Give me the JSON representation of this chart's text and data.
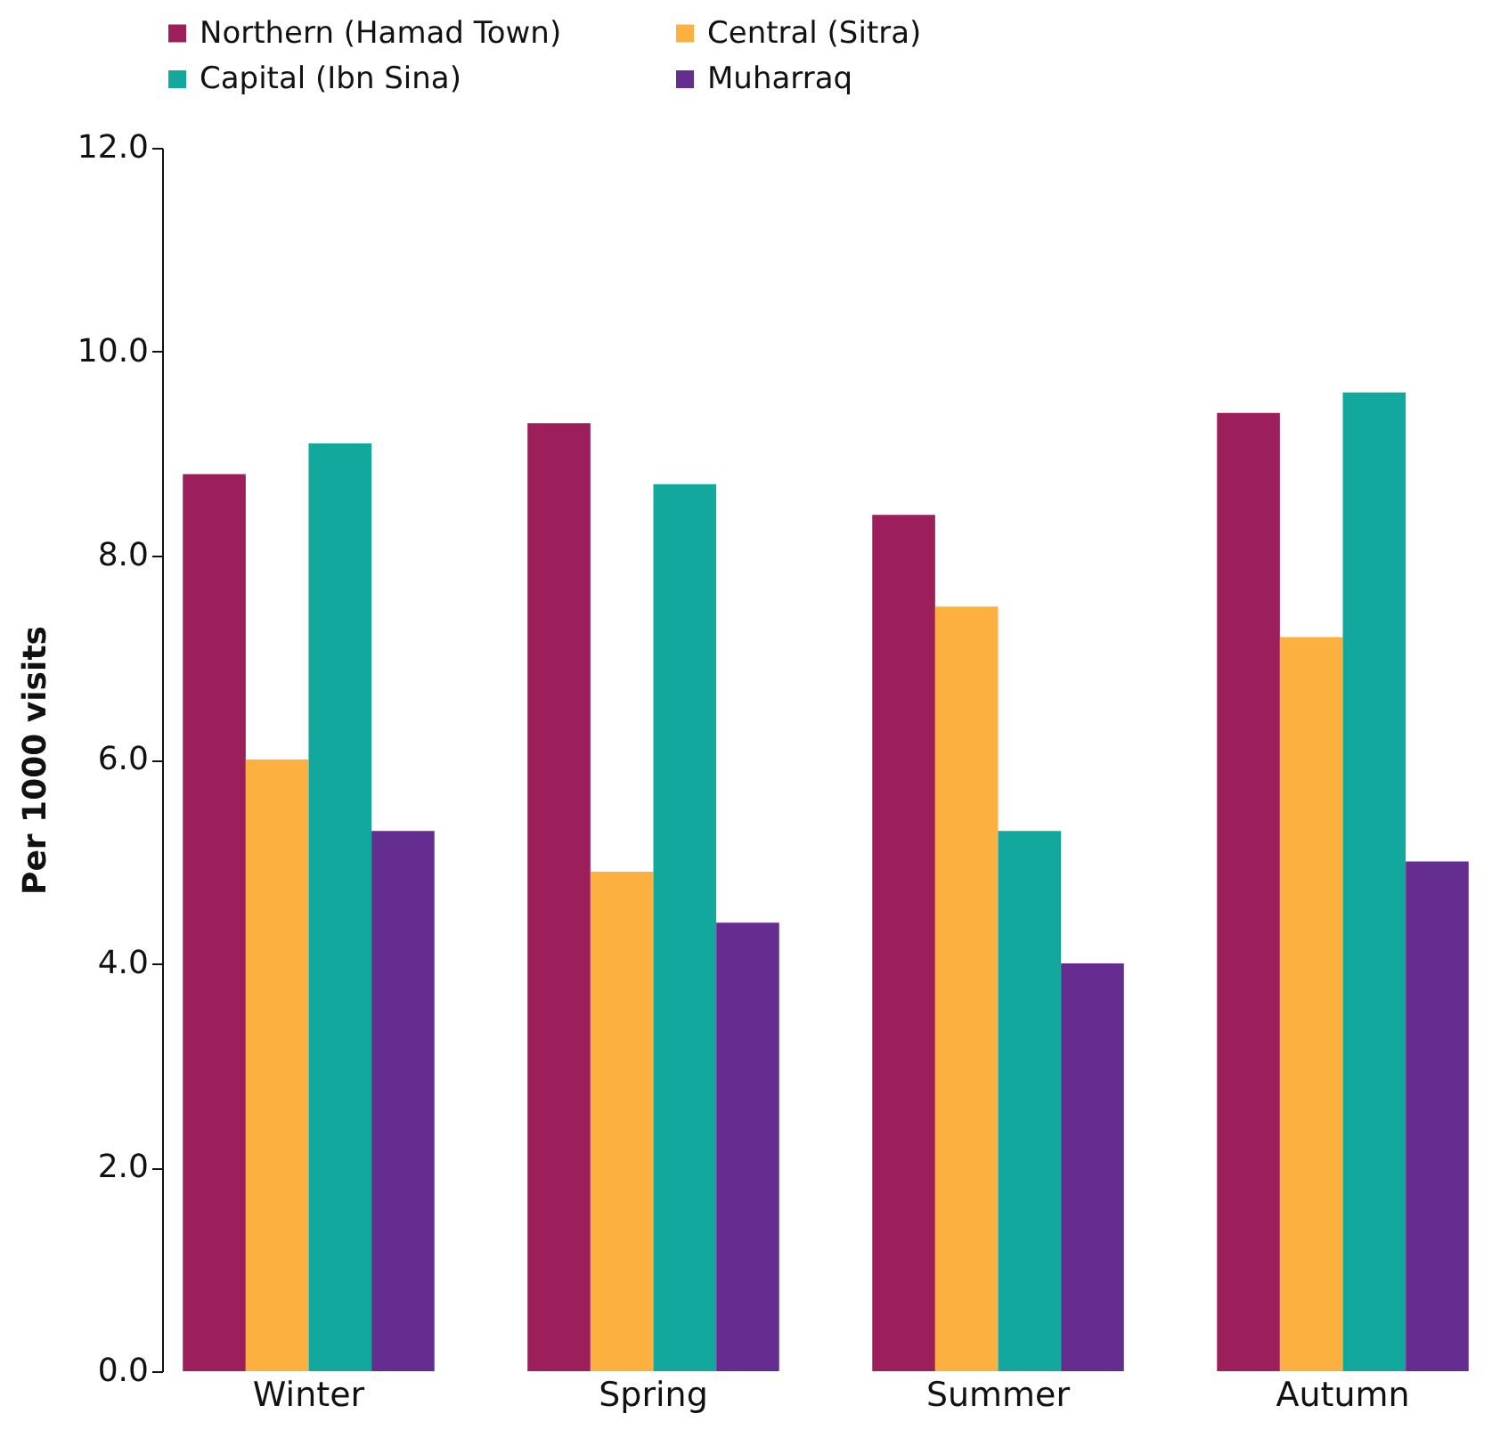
{
  "chart_data": {
    "type": "bar",
    "ylabel": "Per 1000 visits",
    "categories": [
      "Winter",
      "Spring",
      "Summer",
      "Autumn"
    ],
    "series": [
      {
        "name": "Northern (Hamad Town)",
        "color": "#9c1f5c",
        "values": [
          8.8,
          9.3,
          8.4,
          9.4
        ]
      },
      {
        "name": "Central (Sitra)",
        "color": "#fbb040",
        "values": [
          6.0,
          4.9,
          7.5,
          7.2
        ]
      },
      {
        "name": "Capital (Ibn Sina)",
        "color": "#13a89e",
        "values": [
          9.1,
          8.7,
          5.3,
          9.6
        ]
      },
      {
        "name": "Muharraq",
        "color": "#662d91",
        "values": [
          5.3,
          4.4,
          4.0,
          5.0
        ]
      }
    ],
    "ylim": [
      0,
      12
    ],
    "yticks": [
      {
        "value": 0,
        "label": "0.0"
      },
      {
        "value": 2,
        "label": "2.0"
      },
      {
        "value": 4,
        "label": "4.0"
      },
      {
        "value": 6,
        "label": "6.0"
      },
      {
        "value": 8,
        "label": "8.0"
      },
      {
        "value": 10,
        "label": "10.0"
      },
      {
        "value": 12,
        "label": "12.0"
      }
    ],
    "grid": false,
    "legend": "top"
  }
}
